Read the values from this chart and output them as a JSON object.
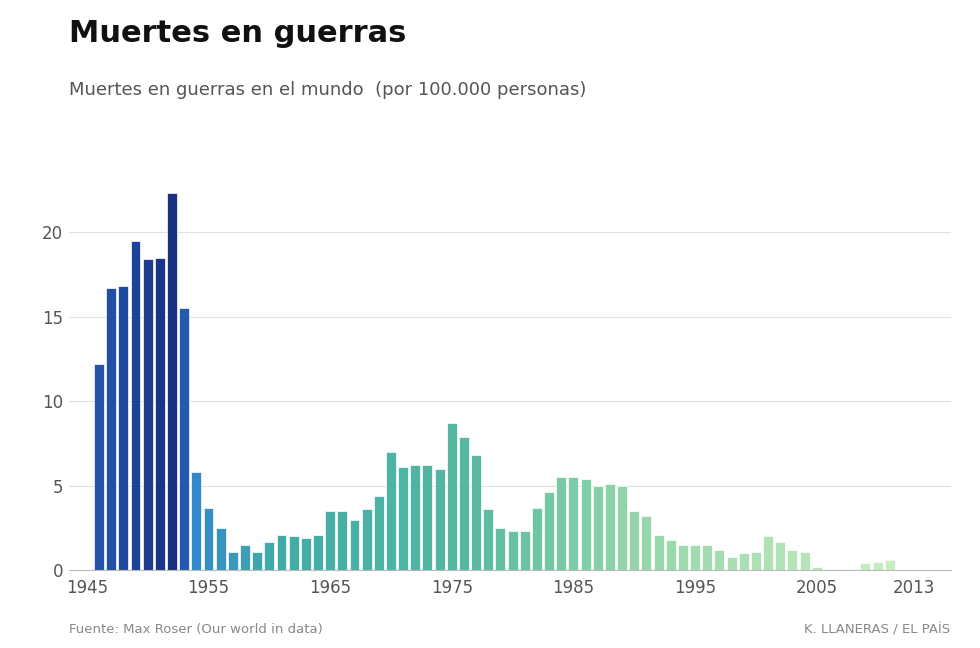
{
  "title": "Muertes en guerras",
  "subtitle": "Muertes en guerras en el mundo  (por 100.000 personas)",
  "source": "Fuente: Max Roser (Our world in data)",
  "credit": "K. LLANERAS / EL PAÍS",
  "years": [
    1946,
    1947,
    1948,
    1949,
    1950,
    1951,
    1952,
    1953,
    1954,
    1955,
    1956,
    1957,
    1958,
    1959,
    1960,
    1961,
    1962,
    1963,
    1964,
    1965,
    1966,
    1967,
    1968,
    1969,
    1970,
    1971,
    1972,
    1973,
    1974,
    1975,
    1976,
    1977,
    1978,
    1979,
    1980,
    1981,
    1982,
    1983,
    1984,
    1985,
    1986,
    1987,
    1988,
    1989,
    1990,
    1991,
    1992,
    1993,
    1994,
    1995,
    1996,
    1997,
    1998,
    1999,
    2000,
    2001,
    2002,
    2003,
    2004,
    2005,
    2006,
    2007,
    2008,
    2009,
    2010,
    2011
  ],
  "values": [
    12.2,
    16.7,
    16.8,
    19.5,
    18.4,
    18.5,
    22.3,
    15.5,
    5.8,
    3.7,
    2.5,
    1.1,
    1.5,
    1.1,
    1.7,
    2.1,
    2.0,
    1.9,
    2.1,
    3.5,
    3.5,
    3.0,
    3.6,
    4.4,
    7.0,
    6.1,
    6.2,
    6.2,
    6.0,
    8.7,
    7.9,
    6.8,
    3.6,
    2.5,
    2.3,
    2.3,
    3.7,
    4.6,
    5.5,
    5.5,
    5.4,
    5.0,
    5.1,
    5.0,
    3.5,
    3.2,
    2.1,
    1.8,
    1.5,
    1.5,
    1.5,
    1.2,
    0.8,
    1.0,
    1.1,
    2.0,
    1.7,
    1.2,
    1.1,
    0.2,
    0.1,
    0.1,
    0.1,
    0.4,
    0.5,
    0.6
  ],
  "bar_colors": [
    "#2255a4",
    "#2255a4",
    "#2255a4",
    "#2255a4",
    "#2255a4",
    "#2255a4",
    "#1a3a8a",
    "#2255a4",
    "#3a7bbf",
    "#4da0b0",
    "#6ab8b0",
    "#7bc8b0",
    "#7bc8b0",
    "#7bc8b0",
    "#7bc8b0",
    "#7bc8b0",
    "#7bc8b0",
    "#7bc8b0",
    "#7bc8b0",
    "#7bc8b0",
    "#5ab8a8",
    "#5ab8a8",
    "#5ab8a8",
    "#5ab8a8",
    "#4aa898",
    "#4aa898",
    "#4aa898",
    "#4aa898",
    "#4aa898",
    "#4aa898",
    "#4aa898",
    "#4aa898",
    "#80c8a8",
    "#90cca8",
    "#90cca8",
    "#90cca8",
    "#80c8a8",
    "#6abca0",
    "#5ab0a0",
    "#5ab0a0",
    "#5ab0a0",
    "#5ab0a0",
    "#5ab0a0",
    "#5ab0a0",
    "#90cca8",
    "#90cca8",
    "#a0d4a8",
    "#a0d4a8",
    "#a0d4a8",
    "#a0d4a8",
    "#a0d4a8",
    "#a0d4a8",
    "#a0d4a8",
    "#a0d4a8",
    "#b8e0b8",
    "#b8e0b8",
    "#b8e0b8",
    "#b8e0b8",
    "#b8e0b8",
    "#c8ecc0",
    "#d0f0c0",
    "#d0f0c0",
    "#d0f0c0",
    "#d0f0c0",
    "#d0f0c0",
    "#d0f0c0"
  ],
  "ylim": [
    0,
    23
  ],
  "yticks": [
    0,
    5,
    10,
    15,
    20
  ],
  "xticks": [
    1945,
    1955,
    1965,
    1975,
    1985,
    1995,
    2005,
    2013
  ],
  "background_color": "#ffffff",
  "grid_color": "#e0e0e0",
  "title_fontsize": 22,
  "subtitle_fontsize": 13,
  "axis_fontsize": 12
}
